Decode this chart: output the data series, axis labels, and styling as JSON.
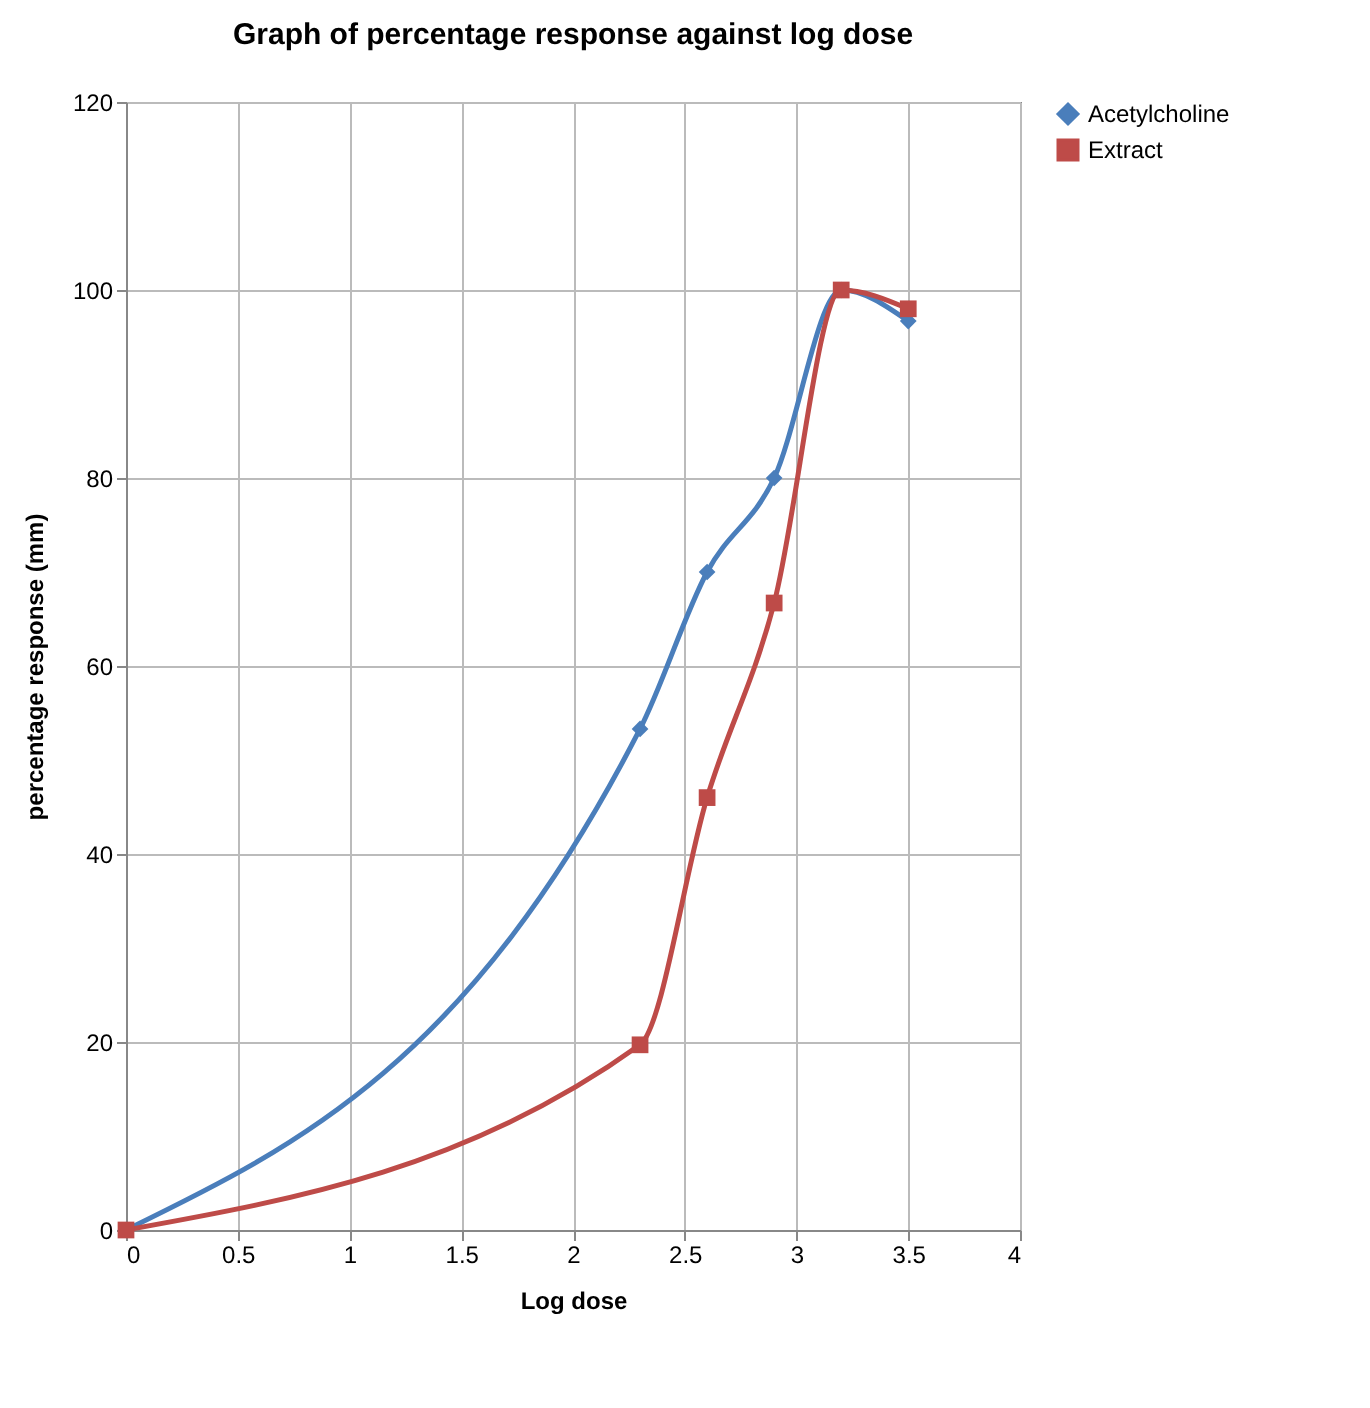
{
  "chart_data": {
    "type": "line",
    "title": "Graph of percentage response against log dose",
    "xlabel": "Log dose",
    "ylabel": "percentage response (mm)",
    "x": [
      0,
      2.3,
      2.6,
      2.9,
      3.2,
      3.5
    ],
    "series": [
      {
        "name": "Acetylcholine",
        "color": "#4a7ebb",
        "marker": "diamond",
        "values": [
          0,
          53.3,
          70,
          80,
          100,
          96.7
        ]
      },
      {
        "name": "Extract",
        "color": "#be4b48",
        "marker": "square",
        "values": [
          0,
          19.7,
          46,
          66.7,
          100,
          98
        ]
      }
    ],
    "xlim": [
      0,
      4
    ],
    "xticks": [
      0,
      0.5,
      1,
      1.5,
      2,
      2.5,
      3,
      3.5,
      4
    ],
    "ylim": [
      0,
      120
    ],
    "yticks": [
      0,
      20,
      40,
      60,
      80,
      100,
      120
    ],
    "grid": true,
    "legend": "right",
    "line_style": "solid"
  }
}
